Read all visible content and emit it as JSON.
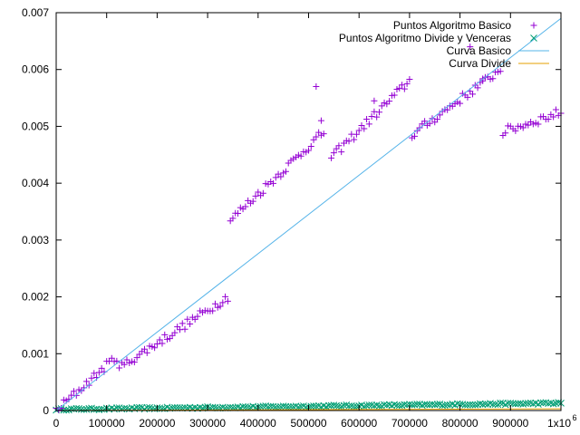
{
  "chart_data": {
    "type": "scatter",
    "title": "",
    "xlabel": "",
    "ylabel": "",
    "xlim": [
      0,
      1000000
    ],
    "ylim": [
      0,
      0.007
    ],
    "grid": false,
    "legend_position": "top-right",
    "x_ticks": [
      0,
      100000,
      200000,
      300000,
      400000,
      500000,
      600000,
      700000,
      800000,
      900000,
      1000000
    ],
    "x_tick_labels": [
      "0",
      "100000",
      "200000",
      "300000",
      "400000",
      "500000",
      "600000",
      "700000",
      "800000",
      "900000",
      "1x10"
    ],
    "x_tick_exponent": "6",
    "y_ticks": [
      0,
      0.001,
      0.002,
      0.003,
      0.004,
      0.005,
      0.006,
      0.007
    ],
    "y_tick_labels": [
      "0",
      "0.001",
      "0.002",
      "0.003",
      "0.004",
      "0.005",
      "0.006",
      "0.007"
    ],
    "colors": {
      "basico_points": "#9400d3",
      "divide_points": "#009e73",
      "basico_curve": "#56b4e9",
      "divide_curve": "#e69f00"
    },
    "series": [
      {
        "name": "Puntos Algoritmo Basico",
        "style": "points-plus",
        "segments": [
          {
            "x_start": 0,
            "x_end": 120000,
            "y_start": 0.0,
            "y_end": 0.00095
          },
          {
            "x_start": 125000,
            "x_end": 340000,
            "y_start": 0.00075,
            "y_end": 0.002
          },
          {
            "x_start": 345000,
            "x_end": 530000,
            "y_start": 0.00335,
            "y_end": 0.0049
          },
          {
            "x_start": 545000,
            "x_end": 700000,
            "y_start": 0.00445,
            "y_end": 0.0058
          },
          {
            "x_start": 705000,
            "x_end": 880000,
            "y_start": 0.00485,
            "y_end": 0.006
          },
          {
            "x_start": 885000,
            "x_end": 1000000,
            "y_start": 0.0049,
            "y_end": 0.00525
          }
        ],
        "outliers": [
          {
            "x": 515000,
            "y": 0.0057
          },
          {
            "x": 525000,
            "y": 0.0051
          },
          {
            "x": 630000,
            "y": 0.00545
          },
          {
            "x": 820000,
            "y": 0.0064
          },
          {
            "x": 845000,
            "y": 0.0058
          }
        ]
      },
      {
        "name": "Puntos Algoritmo Divide y Venceras",
        "style": "points-x",
        "y_start": 2e-05,
        "y_end": 0.00013
      },
      {
        "name": "Curva Basico",
        "style": "line",
        "x": [
          0,
          1000000
        ],
        "y": [
          0,
          0.0069
        ]
      },
      {
        "name": "Curva Divide",
        "style": "line",
        "x": [
          0,
          1000000
        ],
        "y": [
          0,
          3e-05
        ]
      }
    ]
  }
}
